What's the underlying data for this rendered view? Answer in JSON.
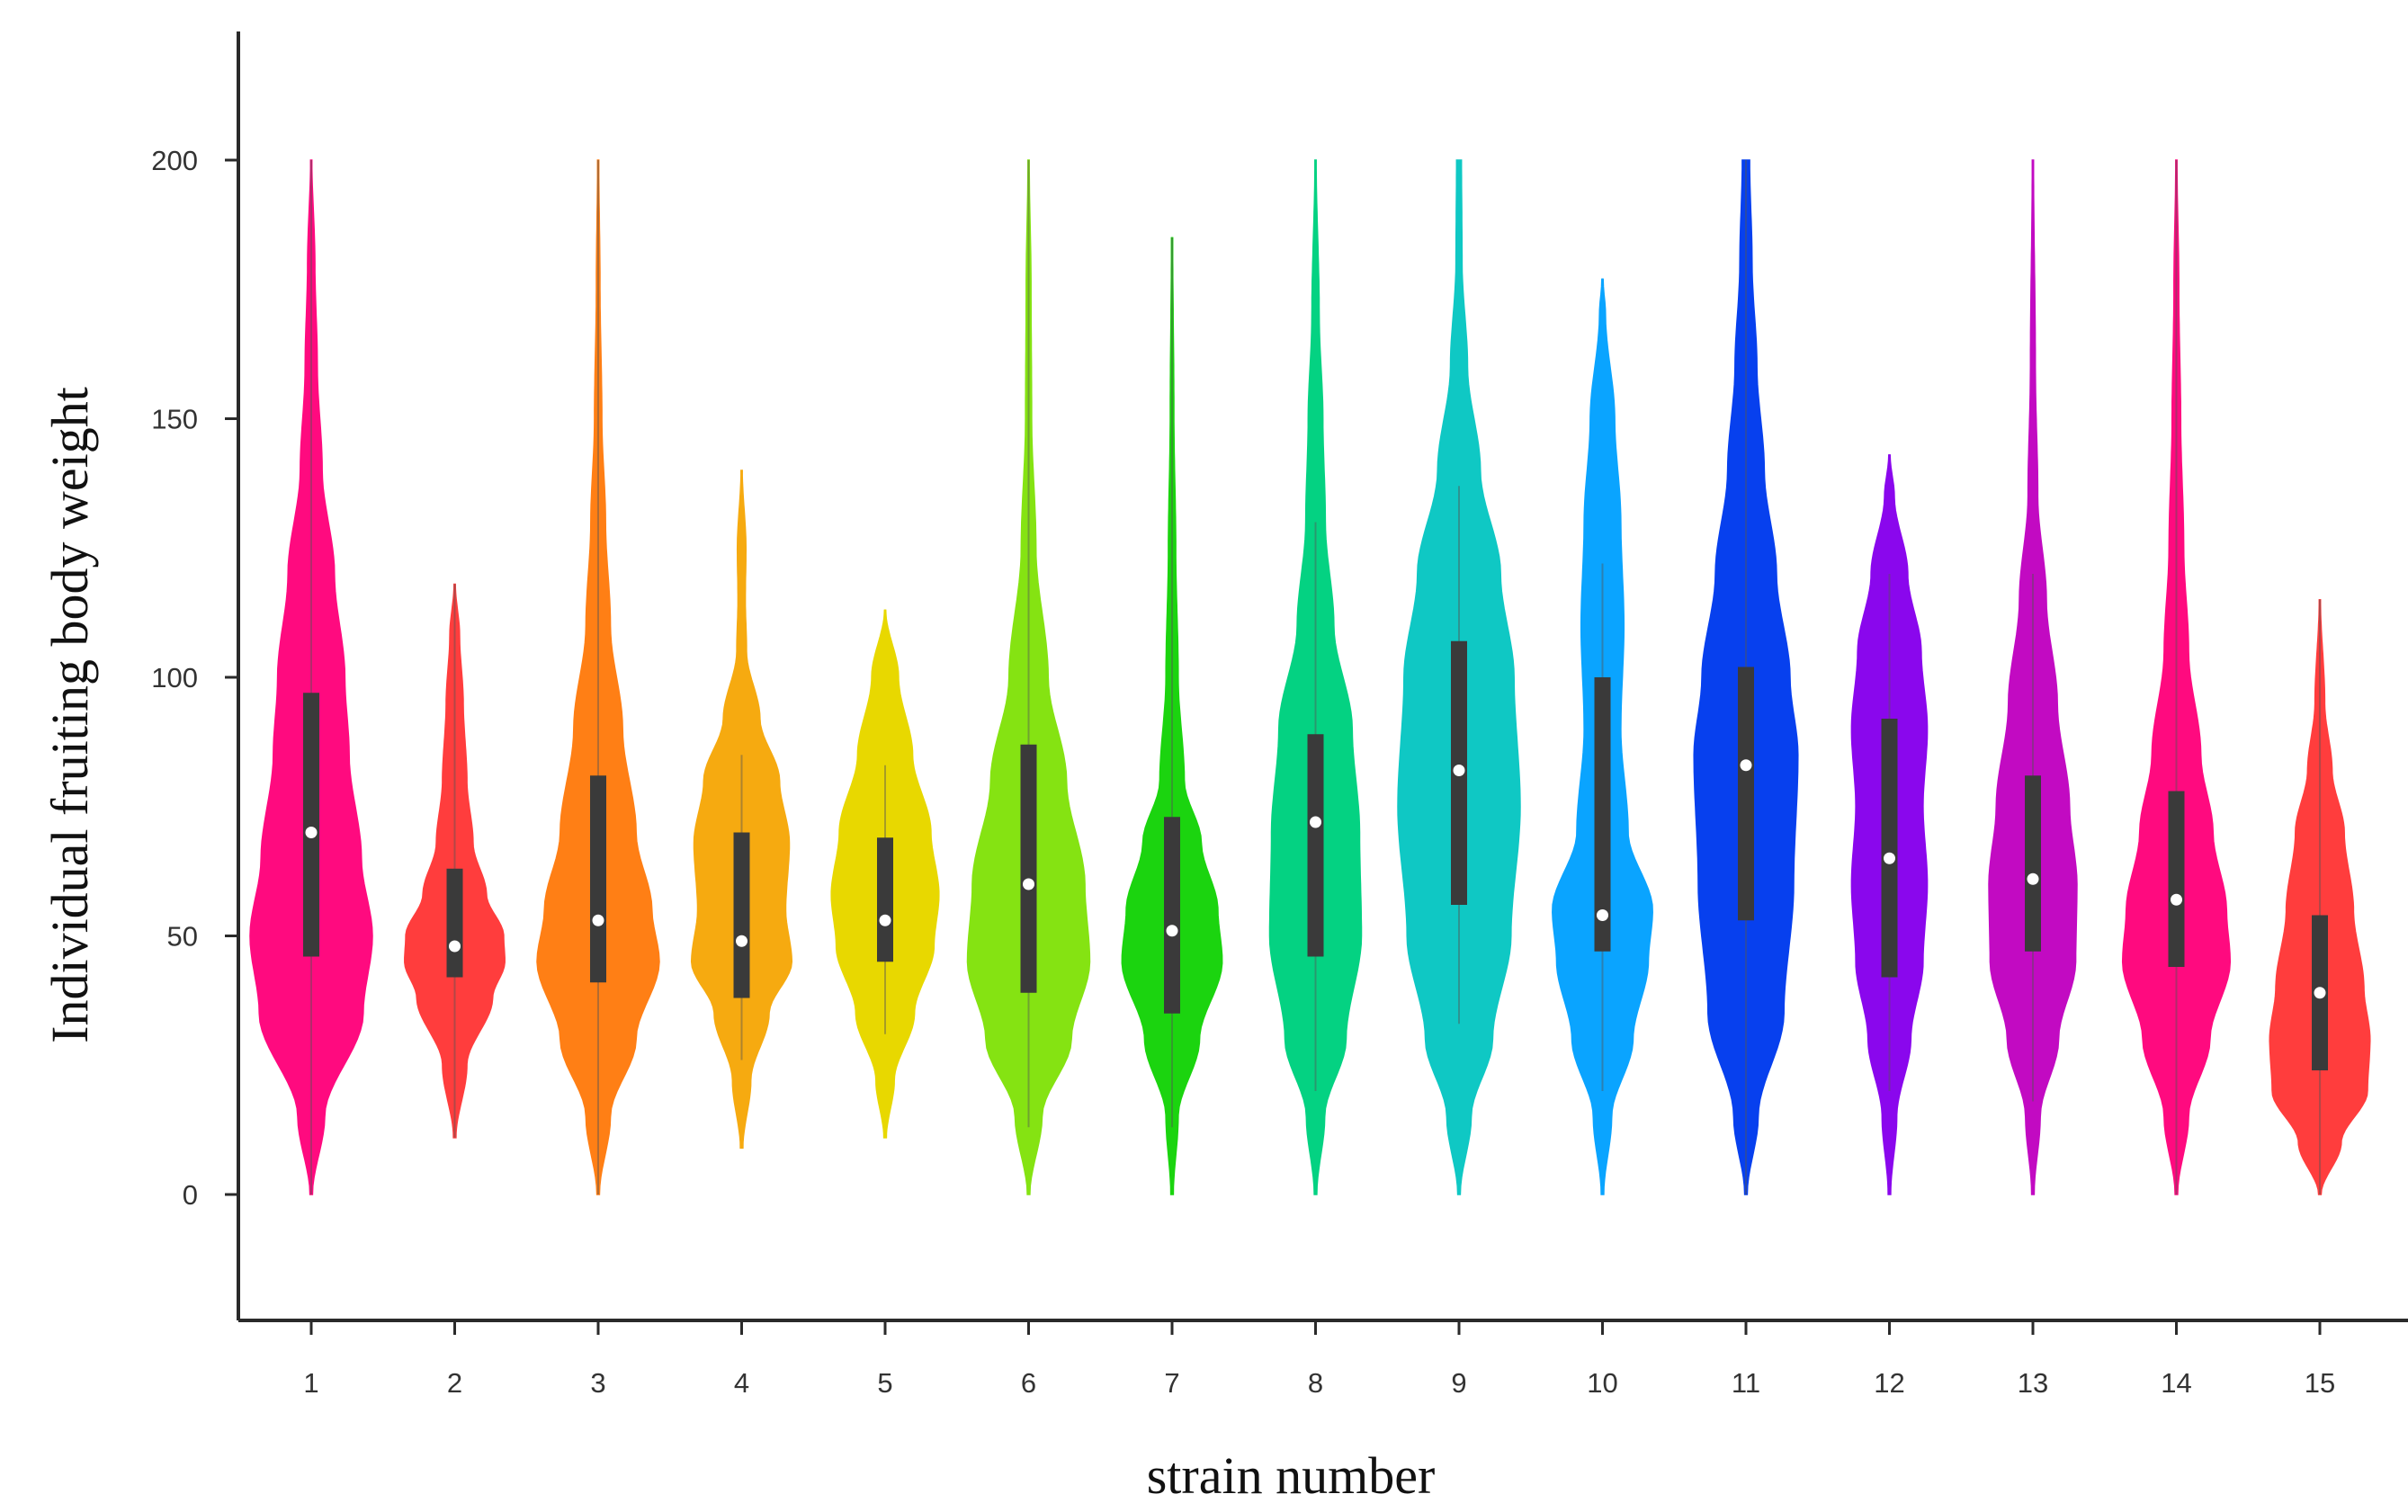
{
  "chart_data": {
    "type": "violin",
    "xlabel": "strain number",
    "ylabel": "Individual fruiting body weight",
    "ylim": [
      -25,
      225
    ],
    "yticks": [
      0,
      50,
      100,
      150,
      200
    ],
    "categories": [
      "1",
      "2",
      "3",
      "4",
      "5",
      "6",
      "7",
      "8",
      "9",
      "10",
      "11",
      "12",
      "13",
      "14",
      "15"
    ],
    "series": [
      {
        "name": "1",
        "color": "#ff0a7f",
        "min": 0,
        "max": 200,
        "q1": 46,
        "median": 70,
        "q3": 97,
        "whisker_low": 0,
        "whisker_high": 200,
        "profile": [
          [
            0,
            0.02
          ],
          [
            15,
            0.22
          ],
          [
            35,
            0.85
          ],
          [
            50,
            1.0
          ],
          [
            65,
            0.82
          ],
          [
            85,
            0.62
          ],
          [
            100,
            0.55
          ],
          [
            120,
            0.38
          ],
          [
            140,
            0.18
          ],
          [
            160,
            0.1
          ],
          [
            180,
            0.06
          ],
          [
            200,
            0.01
          ]
        ]
      },
      {
        "name": "2",
        "color": "#ff3d3d",
        "min": 11,
        "max": 118,
        "q1": 42,
        "median": 48,
        "q3": 63,
        "whisker_low": 11,
        "whisker_high": 118,
        "profile": [
          [
            11,
            0.02
          ],
          [
            25,
            0.2
          ],
          [
            38,
            0.62
          ],
          [
            45,
            0.82
          ],
          [
            50,
            0.8
          ],
          [
            58,
            0.52
          ],
          [
            68,
            0.3
          ],
          [
            80,
            0.2
          ],
          [
            95,
            0.14
          ],
          [
            108,
            0.08
          ],
          [
            118,
            0.01
          ]
        ]
      },
      {
        "name": "3",
        "color": "#ff7f15",
        "min": 0,
        "max": 200,
        "q1": 41,
        "median": 53,
        "q3": 81,
        "whisker_low": 0,
        "whisker_high": 200,
        "profile": [
          [
            0,
            0.02
          ],
          [
            15,
            0.2
          ],
          [
            30,
            0.62
          ],
          [
            45,
            1.0
          ],
          [
            55,
            0.88
          ],
          [
            70,
            0.62
          ],
          [
            90,
            0.4
          ],
          [
            110,
            0.2
          ],
          [
            130,
            0.12
          ],
          [
            150,
            0.06
          ],
          [
            175,
            0.03
          ],
          [
            200,
            0.01
          ]
        ]
      },
      {
        "name": "4",
        "color": "#f6aa10",
        "min": 9,
        "max": 140,
        "q1": 38,
        "median": 49,
        "q3": 70,
        "whisker_low": 26,
        "whisker_high": 85,
        "profile": [
          [
            9,
            0.02
          ],
          [
            22,
            0.15
          ],
          [
            35,
            0.45
          ],
          [
            45,
            0.82
          ],
          [
            55,
            0.72
          ],
          [
            68,
            0.78
          ],
          [
            80,
            0.62
          ],
          [
            92,
            0.3
          ],
          [
            105,
            0.08
          ],
          [
            115,
            0.06
          ],
          [
            125,
            0.07
          ],
          [
            140,
            0.01
          ]
        ]
      },
      {
        "name": "5",
        "color": "#e8d800",
        "min": 11,
        "max": 113,
        "q1": 45,
        "median": 53,
        "q3": 69,
        "whisker_low": 31,
        "whisker_high": 83,
        "profile": [
          [
            11,
            0.02
          ],
          [
            22,
            0.15
          ],
          [
            35,
            0.48
          ],
          [
            48,
            0.8
          ],
          [
            58,
            0.88
          ],
          [
            70,
            0.75
          ],
          [
            85,
            0.45
          ],
          [
            100,
            0.22
          ],
          [
            113,
            0.01
          ]
        ]
      },
      {
        "name": "6",
        "color": "#85e312",
        "min": 0,
        "max": 200,
        "q1": 39,
        "median": 60,
        "q3": 87,
        "whisker_low": 13,
        "whisker_high": 200,
        "profile": [
          [
            0,
            0.02
          ],
          [
            15,
            0.22
          ],
          [
            30,
            0.7
          ],
          [
            45,
            1.0
          ],
          [
            60,
            0.92
          ],
          [
            80,
            0.62
          ],
          [
            100,
            0.32
          ],
          [
            125,
            0.12
          ],
          [
            150,
            0.05
          ],
          [
            175,
            0.04
          ],
          [
            200,
            0.01
          ]
        ]
      },
      {
        "name": "7",
        "color": "#1bd40f",
        "min": 0,
        "max": 185,
        "q1": 35,
        "median": 51,
        "q3": 73,
        "whisker_low": 13,
        "whisker_high": 185,
        "profile": [
          [
            0,
            0.02
          ],
          [
            15,
            0.1
          ],
          [
            30,
            0.45
          ],
          [
            45,
            0.82
          ],
          [
            55,
            0.75
          ],
          [
            68,
            0.48
          ],
          [
            80,
            0.2
          ],
          [
            100,
            0.1
          ],
          [
            125,
            0.06
          ],
          [
            150,
            0.03
          ],
          [
            185,
            0.01
          ]
        ]
      },
      {
        "name": "8",
        "color": "#04d282",
        "min": 0,
        "max": 200,
        "q1": 46,
        "median": 72,
        "q3": 89,
        "whisker_low": 20,
        "whisker_high": 130,
        "profile": [
          [
            0,
            0.02
          ],
          [
            15,
            0.15
          ],
          [
            30,
            0.5
          ],
          [
            50,
            0.75
          ],
          [
            70,
            0.72
          ],
          [
            90,
            0.6
          ],
          [
            110,
            0.3
          ],
          [
            130,
            0.16
          ],
          [
            150,
            0.12
          ],
          [
            170,
            0.06
          ],
          [
            200,
            0.01
          ]
        ]
      },
      {
        "name": "9",
        "color": "#0fc8c4",
        "min": 0,
        "max": 200,
        "q1": 56,
        "median": 82,
        "q3": 107,
        "whisker_low": 33,
        "whisker_high": 137,
        "profile": [
          [
            0,
            0.02
          ],
          [
            15,
            0.2
          ],
          [
            30,
            0.55
          ],
          [
            50,
            0.85
          ],
          [
            75,
            1.0
          ],
          [
            100,
            0.9
          ],
          [
            120,
            0.68
          ],
          [
            140,
            0.35
          ],
          [
            160,
            0.14
          ],
          [
            180,
            0.05
          ],
          [
            200,
            0.04
          ]
        ]
      },
      {
        "name": "10",
        "color": "#0aa4ff",
        "min": 0,
        "max": 177,
        "q1": 47,
        "median": 54,
        "q3": 100,
        "whisker_low": 20,
        "whisker_high": 122,
        "profile": [
          [
            0,
            0.02
          ],
          [
            15,
            0.15
          ],
          [
            30,
            0.5
          ],
          [
            45,
            0.75
          ],
          [
            55,
            0.82
          ],
          [
            70,
            0.42
          ],
          [
            90,
            0.3
          ],
          [
            110,
            0.35
          ],
          [
            130,
            0.3
          ],
          [
            150,
            0.2
          ],
          [
            170,
            0.05
          ],
          [
            177,
            0.01
          ]
        ]
      },
      {
        "name": "11",
        "color": "#0740ee",
        "min": 0,
        "max": 200,
        "q1": 53,
        "median": 83,
        "q3": 102,
        "whisker_low": 0,
        "whisker_high": 200,
        "profile": [
          [
            0,
            0.02
          ],
          [
            15,
            0.2
          ],
          [
            35,
            0.62
          ],
          [
            60,
            0.78
          ],
          [
            85,
            0.85
          ],
          [
            100,
            0.72
          ],
          [
            120,
            0.5
          ],
          [
            140,
            0.3
          ],
          [
            160,
            0.18
          ],
          [
            180,
            0.1
          ],
          [
            200,
            0.06
          ]
        ]
      },
      {
        "name": "12",
        "color": "#8a07ed",
        "min": 0,
        "max": 143,
        "q1": 42,
        "median": 65,
        "q3": 92,
        "whisker_low": 20,
        "whisker_high": 120,
        "profile": [
          [
            0,
            0.02
          ],
          [
            15,
            0.12
          ],
          [
            30,
            0.35
          ],
          [
            45,
            0.55
          ],
          [
            60,
            0.62
          ],
          [
            75,
            0.55
          ],
          [
            90,
            0.62
          ],
          [
            105,
            0.52
          ],
          [
            120,
            0.3
          ],
          [
            135,
            0.08
          ],
          [
            143,
            0.01
          ]
        ]
      },
      {
        "name": "13",
        "color": "#c20ac2",
        "min": 0,
        "max": 200,
        "q1": 47,
        "median": 61,
        "q3": 81,
        "whisker_low": 18,
        "whisker_high": 120,
        "profile": [
          [
            0,
            0.02
          ],
          [
            15,
            0.12
          ],
          [
            30,
            0.42
          ],
          [
            45,
            0.7
          ],
          [
            60,
            0.72
          ],
          [
            75,
            0.6
          ],
          [
            95,
            0.4
          ],
          [
            115,
            0.22
          ],
          [
            135,
            0.08
          ],
          [
            160,
            0.04
          ],
          [
            200,
            0.01
          ]
        ]
      },
      {
        "name": "14",
        "color": "#ff0a7f",
        "min": 0,
        "max": 200,
        "q1": 44,
        "median": 57,
        "q3": 78,
        "whisker_low": 0,
        "whisker_high": 200,
        "profile": [
          [
            0,
            0.02
          ],
          [
            15,
            0.2
          ],
          [
            30,
            0.55
          ],
          [
            45,
            0.88
          ],
          [
            55,
            0.82
          ],
          [
            70,
            0.6
          ],
          [
            85,
            0.4
          ],
          [
            105,
            0.2
          ],
          [
            125,
            0.12
          ],
          [
            150,
            0.07
          ],
          [
            175,
            0.04
          ],
          [
            200,
            0.01
          ]
        ]
      },
      {
        "name": "15",
        "color": "#ff3d3d",
        "min": 0,
        "max": 115,
        "q1": 24,
        "median": 39,
        "q3": 54,
        "whisker_low": 0,
        "whisker_high": 115,
        "profile": [
          [
            0,
            0.02
          ],
          [
            10,
            0.35
          ],
          [
            20,
            0.78
          ],
          [
            30,
            0.82
          ],
          [
            40,
            0.72
          ],
          [
            55,
            0.55
          ],
          [
            70,
            0.4
          ],
          [
            82,
            0.2
          ],
          [
            95,
            0.08
          ],
          [
            115,
            0.01
          ]
        ]
      }
    ]
  }
}
